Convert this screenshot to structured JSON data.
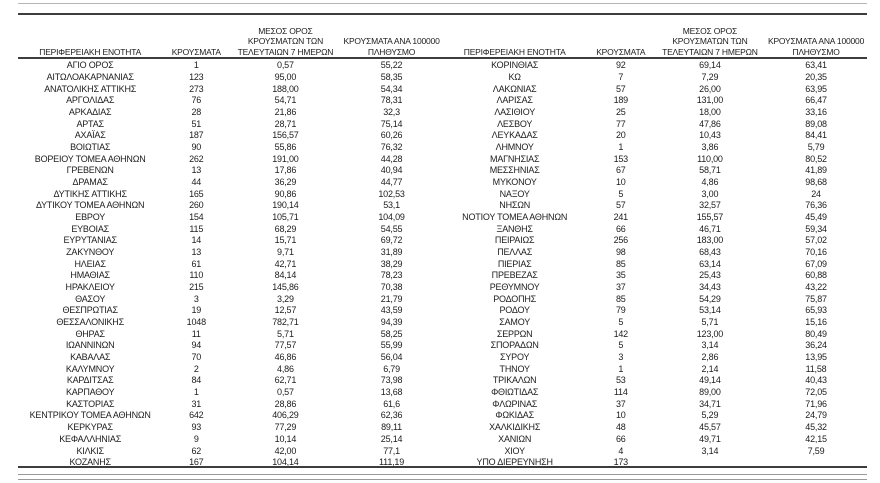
{
  "colors": {
    "text": "#1c1c1c",
    "rule_dark": "#3d3d3d",
    "rule_light_top": "#b5b5b5",
    "rule_gray_bottom": "#9a9a9a",
    "background": "#ffffff"
  },
  "table": {
    "headers": [
      "ΠΕΡΙΦΕΡΕΙΑΚΗ ΕΝΟΤΗΤΑ",
      "ΚΡΟΥΣΜΑΤΑ",
      "ΜΕΣΟΣ ΟΡΟΣ\nΚΡΟΥΣΜΑΤΩΝ ΤΩΝ\nΤΕΛΕΥΤΑΙΩΝ 7 ΗΜΕΡΩΝ",
      "ΚΡΟΥΣΜΑΤΑ ΑΝΑ 100000\nΠΛΗΘΥΣΜΟ"
    ],
    "left_rows": [
      [
        "ΑΓΙΟ ΟΡΟΣ",
        "1",
        "0,57",
        "55,22"
      ],
      [
        "ΑΙΤΩΛΟΑΚΑΡΝΑΝΙΑΣ",
        "123",
        "95,00",
        "58,35"
      ],
      [
        "ΑΝΑΤΟΛΙΚΗΣ ΑΤΤΙΚΗΣ",
        "273",
        "188,00",
        "54,34"
      ],
      [
        "ΑΡΓΟΛΙΔΑΣ",
        "76",
        "54,71",
        "78,31"
      ],
      [
        "ΑΡΚΑΔΙΑΣ",
        "28",
        "21,86",
        "32,3"
      ],
      [
        "ΑΡΤΑΣ",
        "51",
        "28,71",
        "75,14"
      ],
      [
        "ΑΧΑΪΑΣ",
        "187",
        "156,57",
        "60,26"
      ],
      [
        "ΒΟΙΩΤΙΑΣ",
        "90",
        "55,86",
        "76,32"
      ],
      [
        "ΒΟΡΕΙΟΥ ΤΟΜΕΑ ΑΘΗΝΩΝ",
        "262",
        "191,00",
        "44,28"
      ],
      [
        "ΓΡΕΒΕΝΩΝ",
        "13",
        "17,86",
        "40,94"
      ],
      [
        "ΔΡΑΜΑΣ",
        "44",
        "36,29",
        "44,77"
      ],
      [
        "ΔΥΤΙΚΗΣ ΑΤΤΙΚΗΣ",
        "165",
        "90,86",
        "102,53"
      ],
      [
        "ΔΥΤΙΚΟΥ ΤΟΜΕΑ ΑΘΗΝΩΝ",
        "260",
        "190,14",
        "53,1"
      ],
      [
        "ΕΒΡΟΥ",
        "154",
        "105,71",
        "104,09"
      ],
      [
        "ΕΥΒΟΙΑΣ",
        "115",
        "68,29",
        "54,55"
      ],
      [
        "ΕΥΡΥΤΑΝΙΑΣ",
        "14",
        "15,71",
        "69,72"
      ],
      [
        "ΖΑΚΥΝΘΟΥ",
        "13",
        "9,71",
        "31,89"
      ],
      [
        "ΗΛΕΙΑΣ",
        "61",
        "42,71",
        "38,29"
      ],
      [
        "ΗΜΑΘΙΑΣ",
        "110",
        "84,14",
        "78,23"
      ],
      [
        "ΗΡΑΚΛΕΙΟΥ",
        "215",
        "145,86",
        "70,38"
      ],
      [
        "ΘΑΣΟΥ",
        "3",
        "3,29",
        "21,79"
      ],
      [
        "ΘΕΣΠΡΩΤΙΑΣ",
        "19",
        "12,57",
        "43,59"
      ],
      [
        "ΘΕΣΣΑΛΟΝΙΚΗΣ",
        "1048",
        "782,71",
        "94,39"
      ],
      [
        "ΘΗΡΑΣ",
        "11",
        "5,71",
        "58,25"
      ],
      [
        "ΙΩΑΝΝΙΝΩΝ",
        "94",
        "77,57",
        "55,99"
      ],
      [
        "ΚΑΒΑΛΑΣ",
        "70",
        "46,86",
        "56,04"
      ],
      [
        "ΚΑΛΥΜΝΟΥ",
        "2",
        "4,86",
        "6,79"
      ],
      [
        "ΚΑΡΔΙΤΣΑΣ",
        "84",
        "62,71",
        "73,98"
      ],
      [
        "ΚΑΡΠΑΘΟΥ",
        "1",
        "0,57",
        "13,68"
      ],
      [
        "ΚΑΣΤΟΡΙΑΣ",
        "31",
        "28,86",
        "61,6"
      ],
      [
        "ΚΕΝΤΡΙΚΟΥ ΤΟΜΕΑ ΑΘΗΝΩΝ",
        "642",
        "406,29",
        "62,36"
      ],
      [
        "ΚΕΡΚΥΡΑΣ",
        "93",
        "77,29",
        "89,11"
      ],
      [
        "ΚΕΦΑΛΛΗΝΙΑΣ",
        "9",
        "10,14",
        "25,14"
      ],
      [
        "ΚΙΛΚΙΣ",
        "62",
        "42,00",
        "77,1"
      ],
      [
        "ΚΟΖΑΝΗΣ",
        "167",
        "104,14",
        "111,19"
      ]
    ],
    "right_rows": [
      [
        "ΚΟΡΙΝΘΙΑΣ",
        "92",
        "69,14",
        "63,41"
      ],
      [
        "ΚΩ",
        "7",
        "7,29",
        "20,35"
      ],
      [
        "ΛΑΚΩΝΙΑΣ",
        "57",
        "26,00",
        "63,95"
      ],
      [
        "ΛΑΡΙΣΑΣ",
        "189",
        "131,00",
        "66,47"
      ],
      [
        "ΛΑΣΙΘΙΟΥ",
        "25",
        "18,00",
        "33,16"
      ],
      [
        "ΛΕΣΒΟΥ",
        "77",
        "47,86",
        "89,08"
      ],
      [
        "ΛΕΥΚΑΔΑΣ",
        "20",
        "10,43",
        "84,41"
      ],
      [
        "ΛΗΜΝΟΥ",
        "1",
        "3,86",
        "5,79"
      ],
      [
        "ΜΑΓΝΗΣΙΑΣ",
        "153",
        "110,00",
        "80,52"
      ],
      [
        "ΜΕΣΣΗΝΙΑΣ",
        "67",
        "58,71",
        "41,89"
      ],
      [
        "ΜΥΚΟΝΟΥ",
        "10",
        "4,86",
        "98,68"
      ],
      [
        "ΝΑΞΟΥ",
        "5",
        "3,00",
        "24"
      ],
      [
        "ΝΗΣΩΝ",
        "57",
        "32,57",
        "76,36"
      ],
      [
        "ΝΟΤΙΟΥ ΤΟΜΕΑ ΑΘΗΝΩΝ",
        "241",
        "155,57",
        "45,49"
      ],
      [
        "ΞΑΝΘΗΣ",
        "66",
        "46,71",
        "59,34"
      ],
      [
        "ΠΕΙΡΑΙΩΣ",
        "256",
        "183,00",
        "57,02"
      ],
      [
        "ΠΕΛΛΑΣ",
        "98",
        "68,43",
        "70,16"
      ],
      [
        "ΠΙΕΡΙΑΣ",
        "85",
        "63,14",
        "67,09"
      ],
      [
        "ΠΡΕΒΕΖΑΣ",
        "35",
        "25,43",
        "60,88"
      ],
      [
        "ΡΕΘΥΜΝΟΥ",
        "37",
        "34,43",
        "43,22"
      ],
      [
        "ΡΟΔΟΠΗΣ",
        "85",
        "54,29",
        "75,87"
      ],
      [
        "ΡΟΔΟΥ",
        "79",
        "53,14",
        "65,93"
      ],
      [
        "ΣΑΜΟΥ",
        "5",
        "5,71",
        "15,16"
      ],
      [
        "ΣΕΡΡΩΝ",
        "142",
        "123,00",
        "80,49"
      ],
      [
        "ΣΠΟΡΑΔΩΝ",
        "5",
        "3,14",
        "36,24"
      ],
      [
        "ΣΥΡΟΥ",
        "3",
        "2,86",
        "13,95"
      ],
      [
        "ΤΗΝΟΥ",
        "1",
        "2,14",
        "11,58"
      ],
      [
        "ΤΡΙΚΑΛΩΝ",
        "53",
        "49,14",
        "40,43"
      ],
      [
        "ΦΘΙΩΤΙΔΑΣ",
        "114",
        "89,00",
        "72,05"
      ],
      [
        "ΦΛΩΡΙΝΑΣ",
        "37",
        "34,71",
        "71,96"
      ],
      [
        "ΦΩΚΙΔΑΣ",
        "10",
        "5,29",
        "24,79"
      ],
      [
        "ΧΑΛΚΙΔΙΚΗΣ",
        "48",
        "45,57",
        "45,32"
      ],
      [
        "ΧΑΝΙΩΝ",
        "66",
        "49,71",
        "42,15"
      ],
      [
        "ΧΙΟΥ",
        "4",
        "3,14",
        "7,59"
      ],
      [
        "ΥΠΟ ΔΙΕΡΕΥΝΗΣΗ",
        "173",
        "",
        ""
      ]
    ]
  }
}
